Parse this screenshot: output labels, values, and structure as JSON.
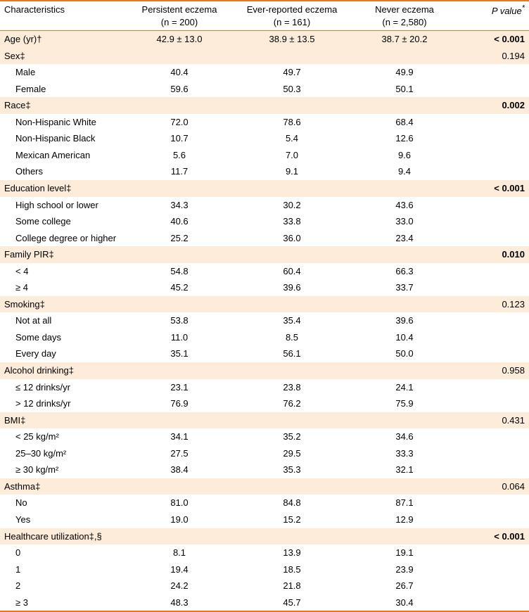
{
  "columns": {
    "c1_label": "Characteristics",
    "c2_label1": "Persistent eczema",
    "c2_label2": "(n = 200)",
    "c3_label1": "Ever-reported eczema",
    "c3_label2": "(n = 161)",
    "c4_label1": "Never eczema",
    "c4_label2": "(n = 2,580)",
    "c5_label": "P value*"
  },
  "colwidths": {
    "c1": "180px",
    "c2": "150px",
    "c3": "170px",
    "c4": "150px",
    "c5": "102px"
  },
  "colors": {
    "rule": "#e87722",
    "section_bg": "#fdecd9"
  },
  "rows": [
    {
      "type": "section",
      "c1": "Age (yr)†",
      "c2": "42.9 ± 13.0",
      "c3": "38.9 ± 13.5",
      "c4": "38.7 ± 20.2",
      "c5": "< 0.001",
      "c5_bold": true
    },
    {
      "type": "section",
      "c1": "Sex‡",
      "c5": "0.194"
    },
    {
      "type": "sub",
      "c1": "Male",
      "c2": "40.4",
      "c3": "49.7",
      "c4": "49.9"
    },
    {
      "type": "sub",
      "c1": "Female",
      "c2": "59.6",
      "c3": "50.3",
      "c4": "50.1"
    },
    {
      "type": "section",
      "c1": "Race‡",
      "c5": "0.002",
      "c5_bold": true
    },
    {
      "type": "sub",
      "c1": "Non-Hispanic White",
      "c2": "72.0",
      "c3": "78.6",
      "c4": "68.4"
    },
    {
      "type": "sub",
      "c1": "Non-Hispanic Black",
      "c2": "10.7",
      "c3": "5.4",
      "c4": "12.6"
    },
    {
      "type": "sub",
      "c1": "Mexican American",
      "c2": "5.6",
      "c3": "7.0",
      "c4": "9.6"
    },
    {
      "type": "sub",
      "c1": "Others",
      "c2": "11.7",
      "c3": "9.1",
      "c4": "9.4"
    },
    {
      "type": "section",
      "c1": "Education level‡",
      "c5": "< 0.001",
      "c5_bold": true
    },
    {
      "type": "sub",
      "c1": "High school or lower",
      "c2": "34.3",
      "c3": "30.2",
      "c4": "43.6"
    },
    {
      "type": "sub",
      "c1": "Some college",
      "c2": "40.6",
      "c3": "33.8",
      "c4": "33.0"
    },
    {
      "type": "sub",
      "c1": "College degree or higher",
      "c2": "25.2",
      "c3": "36.0",
      "c4": "23.4"
    },
    {
      "type": "section",
      "c1": "Family PIR‡",
      "c5": "0.010",
      "c5_bold": true
    },
    {
      "type": "sub",
      "c1": "< 4",
      "c2": "54.8",
      "c3": "60.4",
      "c4": "66.3"
    },
    {
      "type": "sub",
      "c1": "≥ 4",
      "c2": "45.2",
      "c3": "39.6",
      "c4": "33.7"
    },
    {
      "type": "section",
      "c1": "Smoking‡",
      "c5": "0.123"
    },
    {
      "type": "sub",
      "c1": "Not at all",
      "c2": "53.8",
      "c3": "35.4",
      "c4": "39.6"
    },
    {
      "type": "sub",
      "c1": "Some days",
      "c2": "11.0",
      "c3": "8.5",
      "c4": "10.4"
    },
    {
      "type": "sub",
      "c1": "Every day",
      "c2": "35.1",
      "c3": "56.1",
      "c4": "50.0"
    },
    {
      "type": "section",
      "c1": "Alcohol drinking‡",
      "c5": "0.958"
    },
    {
      "type": "sub",
      "c1": "≤ 12 drinks/yr",
      "c2": "23.1",
      "c3": "23.8",
      "c4": "24.1"
    },
    {
      "type": "sub",
      "c1": "> 12 drinks/yr",
      "c2": "76.9",
      "c3": "76.2",
      "c4": "75.9"
    },
    {
      "type": "section",
      "c1": "BMI‡",
      "c5": "0.431"
    },
    {
      "type": "sub",
      "c1": "< 25 kg/m²",
      "c2": "34.1",
      "c3": "35.2",
      "c4": "34.6"
    },
    {
      "type": "sub",
      "c1": "25–30 kg/m²",
      "c2": "27.5",
      "c3": "29.5",
      "c4": "33.3"
    },
    {
      "type": "sub",
      "c1": "≥ 30 kg/m²",
      "c2": "38.4",
      "c3": "35.3",
      "c4": "32.1"
    },
    {
      "type": "section",
      "c1": "Asthma‡",
      "c5": "0.064"
    },
    {
      "type": "sub",
      "c1": "No",
      "c2": "81.0",
      "c3": "84.8",
      "c4": "87.1"
    },
    {
      "type": "sub",
      "c1": "Yes",
      "c2": "19.0",
      "c3": "15.2",
      "c4": "12.9"
    },
    {
      "type": "section",
      "c1": "Healthcare utilization‡,§",
      "c5": "< 0.001",
      "c5_bold": true
    },
    {
      "type": "sub",
      "c1": "0",
      "c2": "8.1",
      "c3": "13.9",
      "c4": "19.1"
    },
    {
      "type": "sub",
      "c1": "1",
      "c2": "19.4",
      "c3": "18.5",
      "c4": "23.9"
    },
    {
      "type": "sub",
      "c1": "2",
      "c2": "24.2",
      "c3": "21.8",
      "c4": "26.7"
    },
    {
      "type": "sub",
      "c1": "≥ 3",
      "c2": "48.3",
      "c3": "45.7",
      "c4": "30.4",
      "last": true
    }
  ]
}
